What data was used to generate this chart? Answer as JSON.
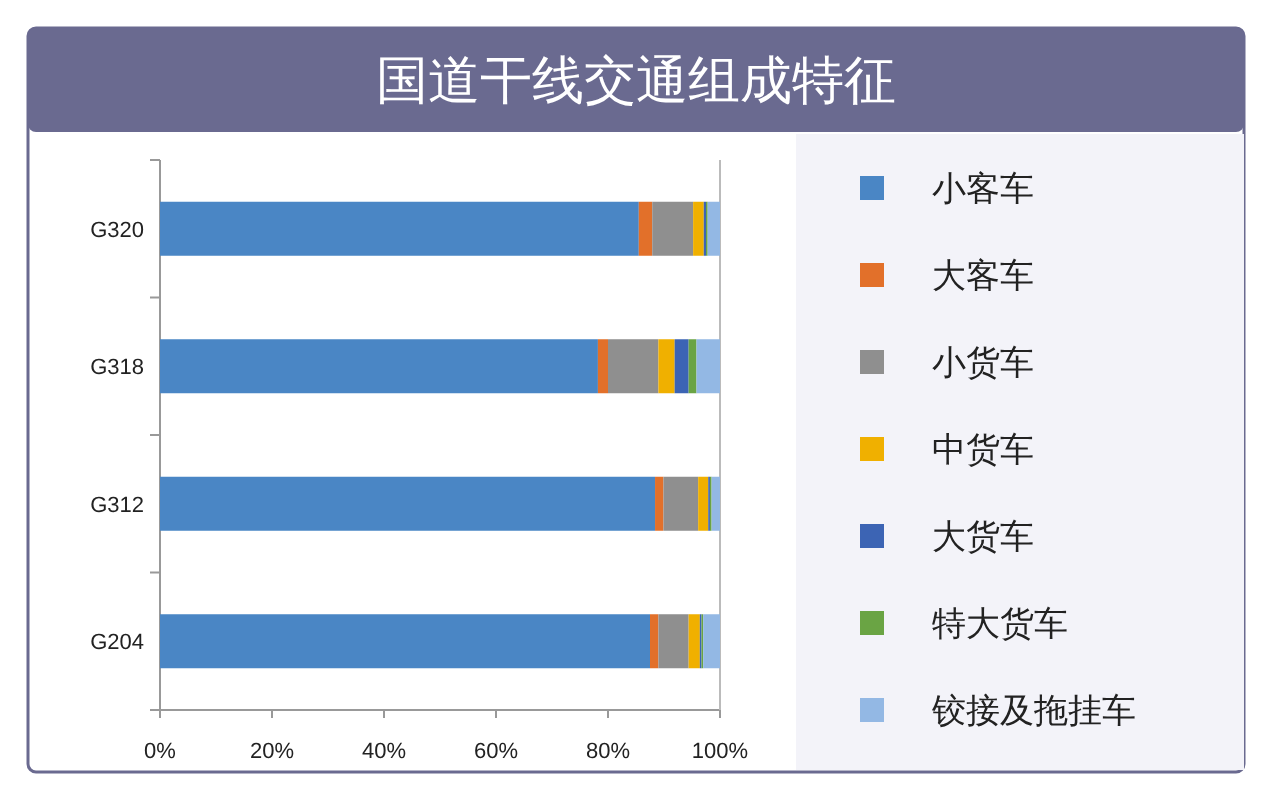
{
  "chart_data": {
    "type": "bar",
    "title": "国道干线交通组成特征",
    "orientation": "horizontal",
    "stacked": true,
    "categories": [
      "G320",
      "G318",
      "G312",
      "G204"
    ],
    "series": [
      {
        "name": "小客车",
        "color": "#4a86c5",
        "values": [
          85.5,
          78.2,
          88.4,
          87.5
        ]
      },
      {
        "name": "大客车",
        "color": "#e2702a",
        "values": [
          2.4,
          1.8,
          1.5,
          1.5
        ]
      },
      {
        "name": "小货车",
        "color": "#8f8f8f",
        "values": [
          7.3,
          9.0,
          6.2,
          5.4
        ]
      },
      {
        "name": "中货车",
        "color": "#f0b000",
        "values": [
          1.9,
          2.9,
          1.8,
          2.0
        ]
      },
      {
        "name": "大货车",
        "color": "#3c64b4",
        "values": [
          0.4,
          2.5,
          0.3,
          0.3
        ]
      },
      {
        "name": "特大货车",
        "color": "#6aa444",
        "values": [
          0.3,
          1.4,
          0.3,
          0.3
        ]
      },
      {
        "name": "铰接及拖挂车",
        "color": "#93b8e4",
        "values": [
          2.2,
          4.2,
          1.5,
          3.0
        ]
      }
    ],
    "xlim": [
      0,
      100
    ],
    "xticks": [
      {
        "value": 0,
        "label": "0%"
      },
      {
        "value": 20,
        "label": "20%"
      },
      {
        "value": 40,
        "label": "40%"
      },
      {
        "value": 60,
        "label": "60%"
      },
      {
        "value": 80,
        "label": "80%"
      },
      {
        "value": 100,
        "label": "100%"
      }
    ],
    "legend": "right",
    "grid": false
  }
}
